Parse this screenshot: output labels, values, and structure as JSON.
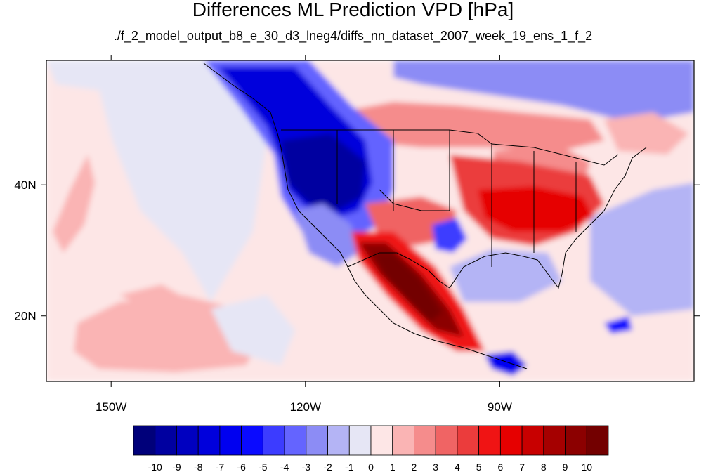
{
  "chart_data": {
    "type": "heatmap",
    "title": "Differences ML Prediction VPD [hPa]",
    "subtitle": "./f_2_model_output_b8_e_30_d3_lneg4/diffs_nn_dataset_2007_week_19_ens_1_f_2",
    "units": "hPa",
    "map_domain": {
      "lon_range": [
        -160,
        -60
      ],
      "lat_range": [
        10,
        59
      ]
    },
    "x_ticks": [
      {
        "lon": -150,
        "label": "150W"
      },
      {
        "lon": -120,
        "label": "120W"
      },
      {
        "lon": -90,
        "label": "90W"
      }
    ],
    "y_ticks": [
      {
        "lat": 40,
        "label": "40N"
      },
      {
        "lat": 20,
        "label": "20N"
      }
    ],
    "colorbar": {
      "levels": [
        -10,
        -9,
        -8,
        -7,
        -6,
        -5,
        -4,
        -3,
        -2,
        -1,
        0,
        1,
        2,
        3,
        4,
        5,
        6,
        7,
        8,
        9,
        10
      ],
      "labels": [
        "-10",
        "-9",
        "-8",
        "-7",
        "-6",
        "-5",
        "-4",
        "-3",
        "-2",
        "-1",
        "0",
        "1",
        "2",
        "3",
        "4",
        "5",
        "6",
        "7",
        "8",
        "9",
        "10"
      ],
      "colors": [
        "#00007a",
        "#0000a0",
        "#0000c0",
        "#0000dc",
        "#0000f0",
        "#0a0aff",
        "#3c3cff",
        "#6464ff",
        "#8c8cf5",
        "#b4b4f5",
        "#e6e6f5",
        "#fde6e6",
        "#fab4b4",
        "#f58c8c",
        "#f06464",
        "#eb3c3c",
        "#f01414",
        "#e60000",
        "#c80000",
        "#a50000",
        "#8c0000",
        "#730000"
      ]
    },
    "regions": [
      {
        "name": "background",
        "value": 0.3
      },
      {
        "name": "pacific_east",
        "value": -0.5
      },
      {
        "name": "pacific_north_ocean",
        "value": -0.7
      },
      {
        "name": "pacific_west_patch",
        "value": 1.5
      },
      {
        "name": "pacific_south",
        "value": 1.2
      },
      {
        "name": "gulf_of_mexico",
        "value": -1.5
      },
      {
        "name": "atlantic_east",
        "value": -1.5
      },
      {
        "name": "caribbean",
        "value": 0.8
      },
      {
        "name": "canada_north",
        "value": -2.5
      },
      {
        "name": "canada_plains",
        "value": 2.5
      },
      {
        "name": "northwest_core",
        "value": -7.5
      },
      {
        "name": "northwest_outer",
        "value": -4
      },
      {
        "name": "great_basin_inner",
        "value": -9.5
      },
      {
        "name": "california_coast",
        "value": -3
      },
      {
        "name": "colorado_plateau",
        "value": 3
      },
      {
        "name": "texas_patch",
        "value": -5
      },
      {
        "name": "southeast_us",
        "value": 4
      },
      {
        "name": "central_us_band",
        "value": 6
      },
      {
        "name": "great_lakes",
        "value": 2
      },
      {
        "name": "mexico_outer",
        "value": 5
      },
      {
        "name": "mexico_core",
        "value": 9
      },
      {
        "name": "mexico_deep",
        "value": 10
      },
      {
        "name": "central_america_blue",
        "value": -7
      },
      {
        "name": "caribbean_blue",
        "value": -6
      }
    ]
  }
}
